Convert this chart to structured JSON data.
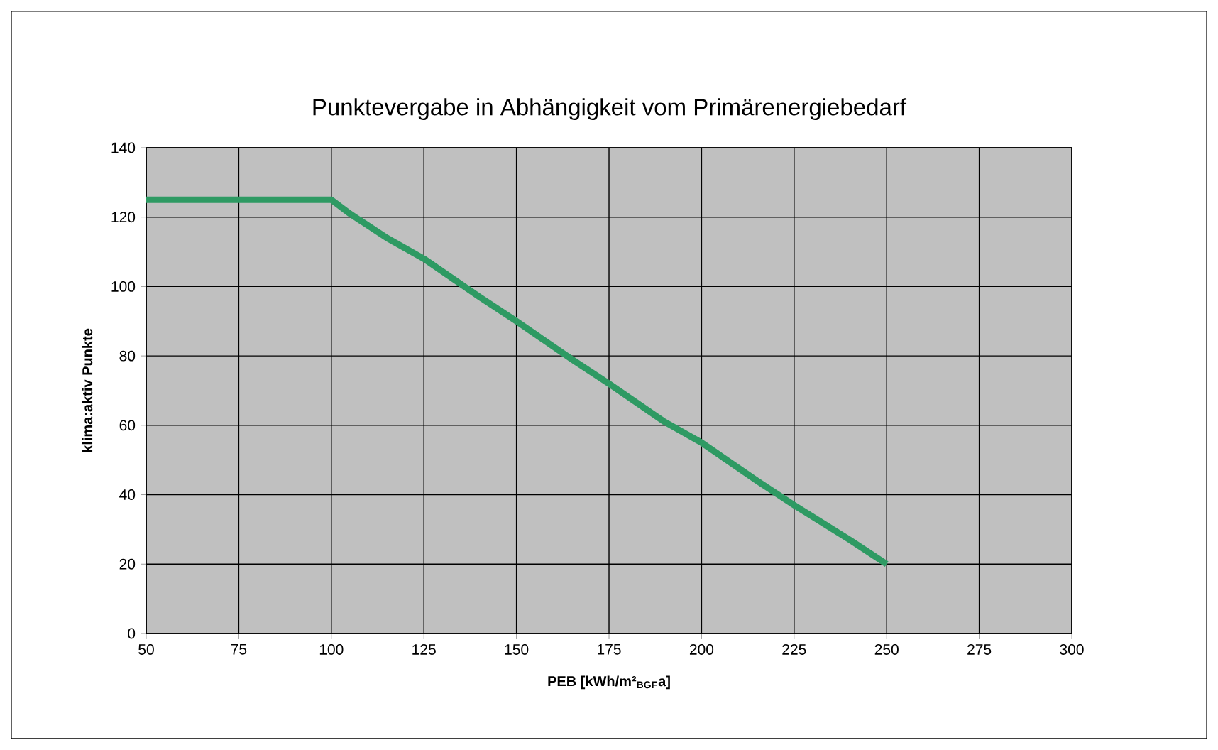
{
  "chart_data": {
    "type": "line",
    "title": "Punktevergabe in Abhängigkeit vom Primärenergiebedarf",
    "xlabel": "PEB [kWh/m²$_{BGF}$a]",
    "ylabel": "klima:aktiv Punkte",
    "x": [
      50,
      100,
      105,
      115,
      125,
      140,
      150,
      165,
      175,
      190,
      200,
      215,
      225,
      240,
      250
    ],
    "series": [
      {
        "color": "#2e9a63",
        "values": [
          125,
          125,
          121,
          114,
          108,
          97,
          90,
          79,
          72,
          61,
          55,
          44,
          37,
          27,
          20
        ]
      }
    ],
    "xlim": [
      50,
      300
    ],
    "ylim": [
      0,
      140
    ],
    "xticks": [
      50,
      75,
      100,
      125,
      150,
      175,
      200,
      225,
      250,
      275,
      300
    ],
    "yticks": [
      0,
      20,
      40,
      60,
      80,
      100,
      120,
      140
    ],
    "grid": true
  }
}
